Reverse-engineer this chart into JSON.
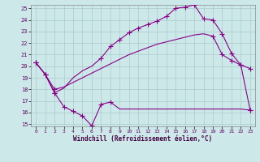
{
  "xlabel": "Windchill (Refroidissement éolien,°C)",
  "bg_color": "#cce8e8",
  "line_color": "#880088",
  "grid_color": "#aacccc",
  "xmin": 0,
  "xmax": 23,
  "ymin": 15,
  "ymax": 25,
  "line1_x": [
    0,
    1,
    2,
    3,
    4,
    5,
    6,
    7,
    8,
    9,
    10,
    11,
    12,
    13,
    14,
    15,
    16,
    17,
    18,
    19,
    20,
    21,
    22,
    23
  ],
  "line1_y": [
    20.3,
    19.3,
    17.7,
    16.5,
    16.1,
    15.7,
    14.85,
    16.7,
    16.9,
    16.3,
    16.3,
    16.3,
    16.3,
    16.3,
    16.3,
    16.3,
    16.3,
    16.3,
    16.3,
    16.3,
    16.3,
    16.3,
    16.3,
    16.2
  ],
  "line1_markers_x": [
    0,
    1,
    2,
    3,
    4,
    5,
    6,
    7,
    8,
    23
  ],
  "line1_markers_y": [
    20.3,
    19.3,
    17.7,
    16.5,
    16.1,
    15.7,
    14.85,
    16.7,
    16.9,
    16.2
  ],
  "line2_x": [
    0,
    1,
    2,
    3,
    4,
    5,
    6,
    7,
    8,
    9,
    10,
    11,
    12,
    13,
    14,
    15,
    16,
    17,
    18,
    19,
    20,
    21,
    22,
    23
  ],
  "line2_y": [
    20.3,
    19.3,
    18.0,
    18.2,
    18.6,
    19.0,
    19.4,
    19.8,
    20.2,
    20.6,
    21.0,
    21.3,
    21.6,
    21.9,
    22.1,
    22.3,
    22.5,
    22.7,
    22.8,
    22.6,
    21.0,
    20.5,
    20.1,
    19.8
  ],
  "line2_markers_x": [
    0,
    1,
    2,
    19,
    20,
    21,
    22,
    23
  ],
  "line2_markers_y": [
    20.3,
    19.3,
    18.0,
    22.6,
    21.0,
    20.5,
    20.1,
    19.8
  ],
  "line3_x": [
    0,
    1,
    2,
    3,
    4,
    5,
    6,
    7,
    8,
    9,
    10,
    11,
    12,
    13,
    14,
    15,
    16,
    17,
    18,
    19,
    20,
    21,
    22,
    23
  ],
  "line3_y": [
    20.3,
    19.3,
    17.7,
    18.1,
    19.0,
    19.6,
    20.0,
    20.7,
    21.7,
    22.3,
    22.9,
    23.3,
    23.6,
    23.9,
    24.3,
    25.0,
    25.1,
    25.3,
    24.1,
    24.0,
    22.8,
    21.1,
    20.1,
    16.2
  ],
  "line3_markers_x": [
    0,
    1,
    2,
    7,
    8,
    9,
    10,
    11,
    12,
    13,
    14,
    15,
    16,
    17,
    18,
    19,
    20,
    21,
    22,
    23
  ],
  "line3_markers_y": [
    20.3,
    19.3,
    17.7,
    20.7,
    21.7,
    22.3,
    22.9,
    23.3,
    23.6,
    23.9,
    24.3,
    25.0,
    25.1,
    25.3,
    24.1,
    24.0,
    22.8,
    21.1,
    20.1,
    16.2
  ],
  "yticks": [
    15,
    16,
    17,
    18,
    19,
    20,
    21,
    22,
    23,
    24,
    25
  ],
  "xticks": [
    0,
    1,
    2,
    3,
    4,
    5,
    6,
    7,
    8,
    9,
    10,
    11,
    12,
    13,
    14,
    15,
    16,
    17,
    18,
    19,
    20,
    21,
    22,
    23
  ]
}
